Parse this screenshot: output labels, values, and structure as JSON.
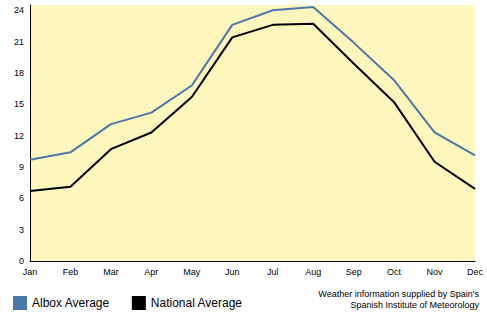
{
  "chart_data": {
    "type": "line",
    "categories": [
      "Jan",
      "Feb",
      "Mar",
      "Apr",
      "May",
      "Jun",
      "Jul",
      "Aug",
      "Sep",
      "Oct",
      "Nov",
      "Dec"
    ],
    "series": [
      {
        "name": "Albox Average",
        "color": "#4a78aa",
        "values": [
          9.7,
          10.4,
          13.1,
          14.2,
          16.8,
          22.6,
          24.0,
          24.3,
          20.9,
          17.3,
          12.3,
          10.1
        ]
      },
      {
        "name": "National Average",
        "color": "#000000",
        "values": [
          6.7,
          7.1,
          10.7,
          12.3,
          15.7,
          21.4,
          22.6,
          22.7,
          18.9,
          15.2,
          9.5,
          6.9
        ]
      }
    ],
    "ylim": [
      0,
      24.5
    ],
    "yticks": [
      0,
      3,
      6,
      9,
      12,
      15,
      18,
      21,
      24
    ],
    "grid": false,
    "legend": "bottom left",
    "annotation": [
      "Weather information supplied by Spain's",
      "Spanish Institute of Meteorology"
    ]
  }
}
